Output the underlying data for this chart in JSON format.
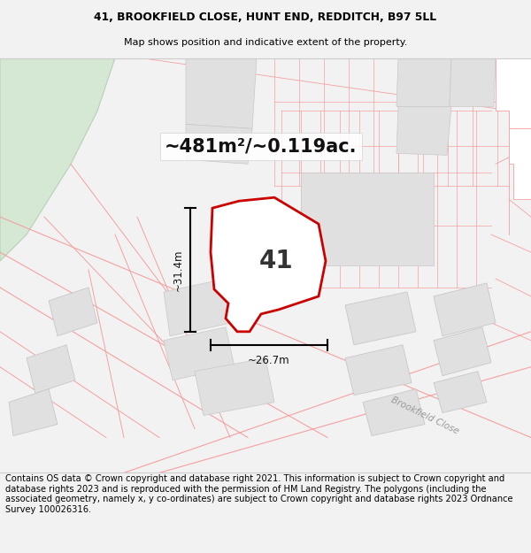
{
  "title_line1": "41, BROOKFIELD CLOSE, HUNT END, REDDITCH, B97 5LL",
  "title_line2": "Map shows position and indicative extent of the property.",
  "footer_text": "Contains OS data © Crown copyright and database right 2021. This information is subject to Crown copyright and database rights 2023 and is reproduced with the permission of HM Land Registry. The polygons (including the associated geometry, namely x, y co-ordinates) are subject to Crown copyright and database rights 2023 Ordnance Survey 100026316.",
  "area_label": "~481m²/~0.119ac.",
  "number_label": "41",
  "dim_width": "~26.7m",
  "dim_height": "~31.4m",
  "road_label": "Brookfield Close",
  "bg_color": "#f2f2f2",
  "map_bg": "#ffffff",
  "plot_fill": "#ffffff",
  "plot_edge": "#cc0000",
  "cad_edge": "#f5a0a0",
  "cad_fill": "#ffffff",
  "gray_fill": "#e0e0e0",
  "gray_edge": "#c8c8c8",
  "green_fill": "#d4e8d4",
  "green_edge": "#b8d0b8"
}
